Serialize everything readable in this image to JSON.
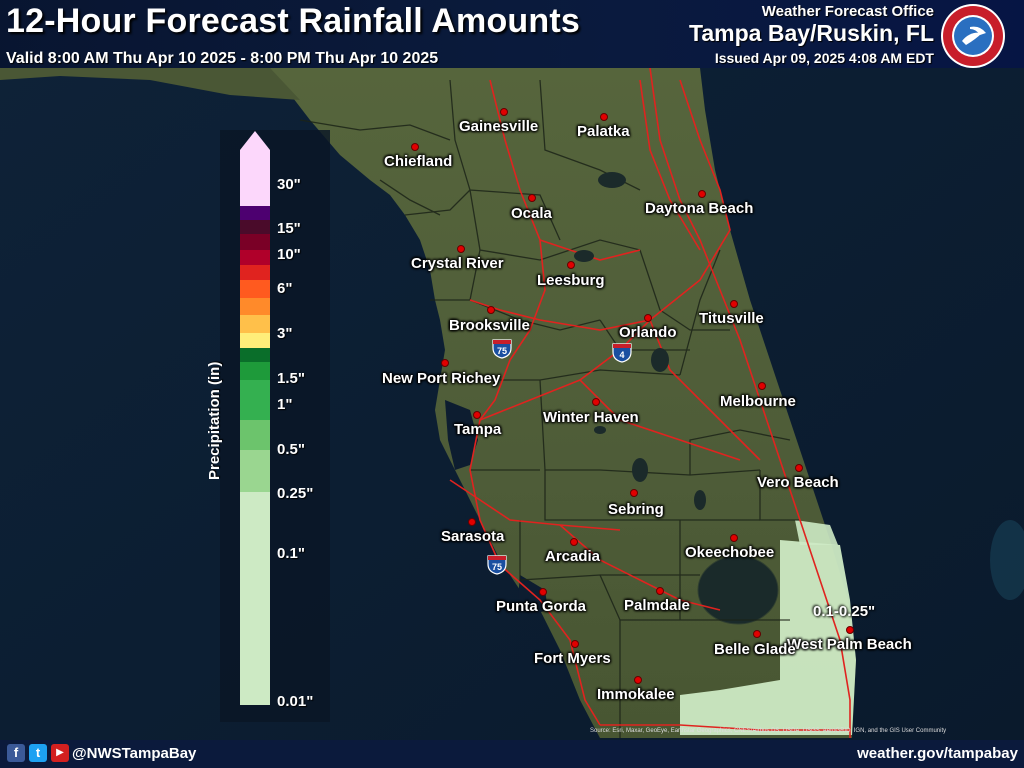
{
  "header": {
    "title": "12-Hour Forecast Rainfall Amounts",
    "valid": "Valid 8:00 AM Thu Apr 10 2025 - 8:00 PM Thu Apr 10 2025",
    "office_line1": "Weather Forecast Office",
    "office_line2": "Tampa Bay/Ruskin, FL",
    "issued": "Issued Apr 09, 2025 4:08 AM EDT",
    "logo_text": "NATIONAL WEATHER SERVICE"
  },
  "legend": {
    "title": "Precipitation (in)",
    "ticks": [
      "30\"",
      "15\"",
      "10\"",
      "6\"",
      "3\"",
      "1.5\"",
      "1\"",
      "0.5\"",
      "0.25\"",
      "0.1\"",
      "0.01\""
    ],
    "colors": [
      "#fcd7fb",
      "#4d0070",
      "#4a0b2a",
      "#7a0026",
      "#b0002a",
      "#e0231f",
      "#ff5a1f",
      "#ff8a2a",
      "#ffc04a",
      "#ffee7a",
      "#0a6e2a",
      "#1e9a3a",
      "#34b050",
      "#6cc46c",
      "#9ad690",
      "#cdeac4"
    ]
  },
  "cities": {
    "gainesville": "Gainesville",
    "palatka": "Palatka",
    "chiefland": "Chiefland",
    "ocala": "Ocala",
    "daytona_beach": "Daytona Beach",
    "crystal_river": "Crystal River",
    "leesburg": "Leesburg",
    "brooksville": "Brooksville",
    "titusville": "Titusville",
    "orlando": "Orlando",
    "new_port_richey": "New Port Richey",
    "melbourne": "Melbourne",
    "tampa": "Tampa",
    "winter_haven": "Winter Haven",
    "vero_beach": "Vero Beach",
    "sebring": "Sebring",
    "sarasota": "Sarasota",
    "arcadia": "Arcadia",
    "okeechobee": "Okeechobee",
    "punta_gorda": "Punta Gorda",
    "palmdale": "Palmdale",
    "west_palm_beach": "West Palm Beach",
    "fort_myers": "Fort Myers",
    "belle_glade": "Belle Glade",
    "immokalee": "Immokalee"
  },
  "interstates": {
    "i75": "75",
    "i4": "4"
  },
  "annotation": "0.1-0.25\"",
  "footer": {
    "handle": "@NWSTampaBay",
    "site": "weather.gov/tampabay",
    "source": "Source: Esri, Maxar, GeoEye, Earthstar Geographics, CNES/Airbus DS, USDA, USGS, AeroGRID, IGN, and the GIS User Community",
    "icon_facebook": "f",
    "icon_twitter": "t",
    "icon_youtube": "▶"
  },
  "colors": {
    "ocean": "#0c1a2e",
    "land": "#4b5a36",
    "rain_area": "#cdeac4",
    "roads": "#e0231f",
    "header_bg": "#0a1a3e",
    "footer_bg": "#0b1a3c"
  }
}
